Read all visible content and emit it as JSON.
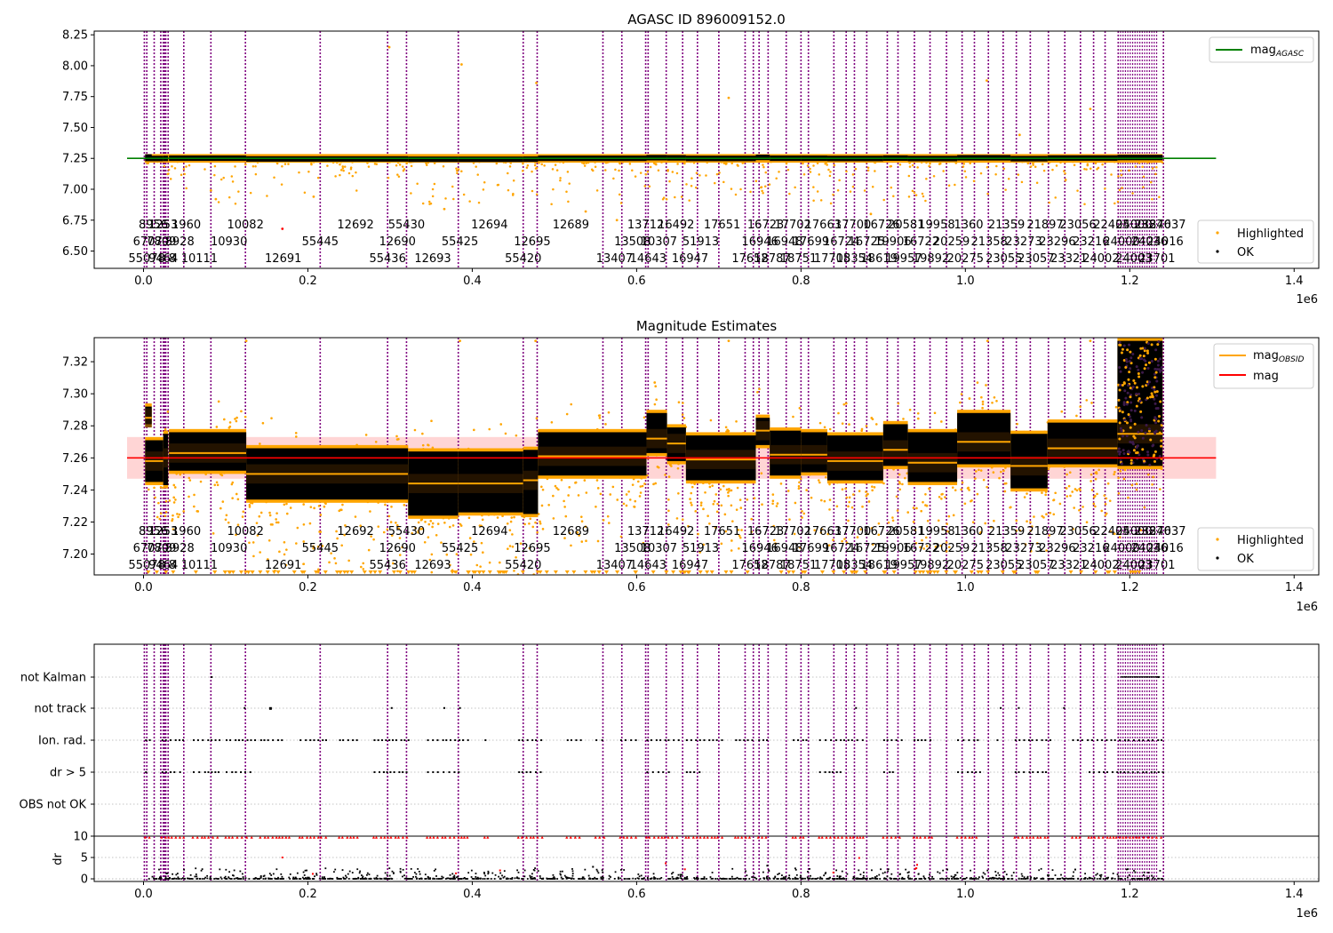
{
  "figure": {
    "panels": [
      "mag_panel",
      "estimates_panel",
      "flags_panel"
    ]
  },
  "chart_data": [
    {
      "id": "mag_panel",
      "type": "scatter",
      "title": "AGASC ID 896009152.0",
      "xlim": [
        -60000,
        1430000
      ],
      "ylim": [
        6.36,
        8.28
      ],
      "x_ticks": [
        0.0,
        0.2,
        0.4,
        0.6,
        0.8,
        1.0,
        1.2,
        1.4
      ],
      "x_multiplier": "1e6",
      "y_ticks": [
        "6.50",
        "6.75",
        "7.00",
        "7.25",
        "7.50",
        "7.75",
        "8.00",
        "8.25"
      ],
      "reference_line": {
        "name": "mag_AGASC",
        "label_main": "mag",
        "label_sub": "AGASC",
        "value": 7.25,
        "color": "#008000"
      },
      "legend_top": {
        "position": "upper right"
      },
      "legend_bottom": {
        "position": "lower right",
        "entries": [
          {
            "label": "Highlighted",
            "color": "#ffa500"
          },
          {
            "label": "OK",
            "color": "#000000"
          }
        ]
      },
      "outliers": [
        {
          "x": 0.299,
          "y": 8.15
        },
        {
          "x": 0.387,
          "y": 8.01
        },
        {
          "x": 0.478,
          "y": 7.86
        },
        {
          "x": 0.712,
          "y": 7.74
        },
        {
          "x": 1.026,
          "y": 7.88
        },
        {
          "x": 1.152,
          "y": 7.65
        },
        {
          "x": 1.066,
          "y": 7.44
        },
        {
          "x": 0.082,
          "y": 6.99
        },
        {
          "x": 0.088,
          "y": 6.92
        },
        {
          "x": 0.207,
          "y": 6.94
        },
        {
          "x": 0.366,
          "y": 6.84
        },
        {
          "x": 0.538,
          "y": 6.82
        },
        {
          "x": 0.576,
          "y": 6.75
        },
        {
          "x": 0.885,
          "y": 6.8
        },
        {
          "x": 0.169,
          "y": 6.68
        }
      ]
    },
    {
      "id": "estimates_panel",
      "type": "scatter",
      "title": "Magnitude Estimates",
      "xlim": [
        -60000,
        1430000
      ],
      "ylim": [
        7.187,
        7.335
      ],
      "x_ticks": [
        0.0,
        0.2,
        0.4,
        0.6,
        0.8,
        1.0,
        1.2,
        1.4
      ],
      "x_multiplier": "1e6",
      "y_ticks": [
        "7.20",
        "7.22",
        "7.24",
        "7.26",
        "7.28",
        "7.30",
        "7.32"
      ],
      "mag_line": {
        "label": "mag",
        "value": 7.26,
        "band": [
          7.247,
          7.273
        ],
        "color": "#ff0000"
      },
      "obsid_label": {
        "label_main": "mag",
        "label_sub": "OBSID",
        "color": "#ffa500"
      },
      "legend_bottom": {
        "position": "lower right",
        "entries": [
          {
            "label": "Highlighted",
            "color": "#ffa500"
          },
          {
            "label": "OK",
            "color": "#000000"
          }
        ]
      },
      "segments": [
        {
          "x0": 0.002,
          "x1": 0.01,
          "mean": 7.285,
          "lo": 7.281,
          "hi": 7.292
        },
        {
          "x0": 0.002,
          "x1": 0.024,
          "mean": 7.258,
          "lo": 7.245,
          "hi": 7.271
        },
        {
          "x0": 0.024,
          "x1": 0.03,
          "mean": 7.26,
          "lo": 7.243,
          "hi": 7.275
        },
        {
          "x0": 0.031,
          "x1": 0.125,
          "mean": 7.263,
          "lo": 7.252,
          "hi": 7.276
        },
        {
          "x0": 0.125,
          "x1": 0.322,
          "mean": 7.25,
          "lo": 7.234,
          "hi": 7.266
        },
        {
          "x0": 0.322,
          "x1": 0.383,
          "mean": 7.244,
          "lo": 7.224,
          "hi": 7.264
        },
        {
          "x0": 0.383,
          "x1": 0.462,
          "mean": 7.244,
          "lo": 7.226,
          "hi": 7.264
        },
        {
          "x0": 0.462,
          "x1": 0.48,
          "mean": 7.246,
          "lo": 7.225,
          "hi": 7.265
        },
        {
          "x0": 0.48,
          "x1": 0.612,
          "mean": 7.261,
          "lo": 7.249,
          "hi": 7.276
        },
        {
          "x0": 0.612,
          "x1": 0.637,
          "mean": 7.272,
          "lo": 7.263,
          "hi": 7.288
        },
        {
          "x0": 0.637,
          "x1": 0.66,
          "mean": 7.269,
          "lo": 7.258,
          "hi": 7.279
        },
        {
          "x0": 0.66,
          "x1": 0.745,
          "mean": 7.259,
          "lo": 7.246,
          "hi": 7.274
        },
        {
          "x0": 0.745,
          "x1": 0.762,
          "mean": 7.277,
          "lo": 7.268,
          "hi": 7.285
        },
        {
          "x0": 0.762,
          "x1": 0.8,
          "mean": 7.262,
          "lo": 7.249,
          "hi": 7.277
        },
        {
          "x0": 0.8,
          "x1": 0.832,
          "mean": 7.262,
          "lo": 7.251,
          "hi": 7.276
        },
        {
          "x0": 0.832,
          "x1": 0.9,
          "mean": 7.258,
          "lo": 7.246,
          "hi": 7.274
        },
        {
          "x0": 0.9,
          "x1": 0.93,
          "mean": 7.265,
          "lo": 7.255,
          "hi": 7.281
        },
        {
          "x0": 0.93,
          "x1": 0.99,
          "mean": 7.257,
          "lo": 7.245,
          "hi": 7.276
        },
        {
          "x0": 0.99,
          "x1": 1.055,
          "mean": 7.27,
          "lo": 7.256,
          "hi": 7.288
        },
        {
          "x0": 1.055,
          "x1": 1.1,
          "mean": 7.255,
          "lo": 7.241,
          "hi": 7.275
        },
        {
          "x0": 1.1,
          "x1": 1.185,
          "mean": 7.266,
          "lo": 7.256,
          "hi": 7.282
        },
        {
          "x0": 1.185,
          "x1": 1.24,
          "mean": 7.275,
          "lo": 7.255,
          "hi": 7.333
        }
      ],
      "outliers": [
        {
          "x": 0.622,
          "y": 7.307
        },
        {
          "x": 0.855,
          "y": 7.294
        },
        {
          "x": 1.005,
          "y": 7.297
        },
        {
          "x": 0.125,
          "y": 7.333
        },
        {
          "x": 0.385,
          "y": 7.333
        },
        {
          "x": 0.477,
          "y": 7.333
        },
        {
          "x": 0.712,
          "y": 7.333
        },
        {
          "x": 1.027,
          "y": 7.333
        },
        {
          "x": 1.152,
          "y": 7.333
        }
      ]
    },
    {
      "id": "flags_panel",
      "type": "scatter",
      "xlim": [
        -60000,
        1430000
      ],
      "x_ticks": [
        0.0,
        0.2,
        0.4,
        0.6,
        0.8,
        1.0,
        1.2,
        1.4
      ],
      "x_multiplier": "1e6",
      "flag_rows": [
        "not Kalman",
        "not track",
        "Ion. rad.",
        "dr > 5",
        "OBS not OK"
      ],
      "dr_axis": {
        "label": "dr",
        "ticks": [
          "0",
          "5",
          "10"
        ],
        "ylim": [
          -0.5,
          10
        ]
      },
      "flag_marks": {
        "not Kalman": [
          0.083,
          1.235
        ],
        "not track": [
          0.123,
          0.154,
          0.302,
          0.366,
          0.385,
          0.867,
          1.043,
          1.065,
          1.12
        ],
        "Ion. rad.": [
          [
            0.002,
            0.008
          ],
          [
            0.022,
            0.048
          ],
          [
            0.06,
            0.092
          ],
          [
            0.1,
            0.135
          ],
          [
            0.142,
            0.17
          ],
          [
            0.19,
            0.222
          ],
          [
            0.238,
            0.262
          ],
          [
            0.28,
            0.322
          ],
          [
            0.345,
            0.395
          ],
          [
            0.415,
            0.42
          ],
          [
            0.456,
            0.488
          ],
          [
            0.515,
            0.532
          ],
          [
            0.55,
            0.562
          ],
          [
            0.58,
            0.6
          ],
          [
            0.612,
            0.652
          ],
          [
            0.66,
            0.706
          ],
          [
            0.72,
            0.742
          ],
          [
            0.748,
            0.76
          ],
          [
            0.79,
            0.806
          ],
          [
            0.822,
            0.876
          ],
          [
            0.9,
            0.922
          ],
          [
            0.937,
            0.962
          ],
          [
            0.99,
            1.017
          ],
          [
            1.038,
            1.044
          ],
          [
            1.06,
            1.103
          ],
          [
            1.13,
            1.142
          ],
          [
            1.148,
            1.24
          ]
        ],
        "dr > 5": [
          [
            0.002,
            0.008
          ],
          [
            0.022,
            0.048
          ],
          [
            0.06,
            0.092
          ],
          [
            0.1,
            0.13
          ],
          [
            0.28,
            0.322
          ],
          [
            0.345,
            0.385
          ],
          [
            0.456,
            0.488
          ],
          [
            0.612,
            0.64
          ],
          [
            0.66,
            0.68
          ],
          [
            0.822,
            0.85
          ],
          [
            0.9,
            0.912
          ],
          [
            0.99,
            1.017
          ],
          [
            1.06,
            1.103
          ],
          [
            1.15,
            1.24
          ]
        ]
      },
      "dr_high_ranges": [
        [
          0.002,
          0.008
        ],
        [
          0.022,
          0.05
        ],
        [
          0.06,
          0.092
        ],
        [
          0.1,
          0.135
        ],
        [
          0.142,
          0.178
        ],
        [
          0.19,
          0.222
        ],
        [
          0.238,
          0.265
        ],
        [
          0.28,
          0.322
        ],
        [
          0.345,
          0.395
        ],
        [
          0.415,
          0.42
        ],
        [
          0.456,
          0.488
        ],
        [
          0.515,
          0.532
        ],
        [
          0.55,
          0.562
        ],
        [
          0.58,
          0.6
        ],
        [
          0.612,
          0.652
        ],
        [
          0.66,
          0.706
        ],
        [
          0.72,
          0.742
        ],
        [
          0.748,
          0.76
        ],
        [
          0.79,
          0.806
        ],
        [
          0.822,
          0.876
        ],
        [
          0.9,
          0.922
        ],
        [
          0.937,
          0.962
        ],
        [
          0.99,
          1.017
        ],
        [
          1.06,
          1.103
        ],
        [
          1.13,
          1.142
        ],
        [
          1.15,
          1.24
        ]
      ]
    }
  ],
  "obsids": {
    "line_x": [
      0.001,
      0.004,
      0.013,
      0.021,
      0.024,
      0.027,
      0.03,
      0.049,
      0.082,
      0.124,
      0.215,
      0.297,
      0.32,
      0.383,
      0.462,
      0.479,
      0.559,
      0.582,
      0.611,
      0.614,
      0.636,
      0.656,
      0.674,
      0.7,
      0.732,
      0.742,
      0.749,
      0.76,
      0.782,
      0.8,
      0.809,
      0.84,
      0.855,
      0.865,
      0.88,
      0.905,
      0.918,
      0.938,
      0.957,
      0.977,
      0.996,
      1.011,
      1.028,
      1.046,
      1.062,
      1.079,
      1.101,
      1.121,
      1.14,
      1.156,
      1.17,
      1.186,
      1.241
    ],
    "dense_band": [
      1.186,
      1.235
    ],
    "labels": [
      {
        "t": "8956",
        "x": 0.012,
        "row": 0
      },
      {
        "t": "1253",
        "x": 0.024,
        "row": 0
      },
      {
        "t": "1960",
        "x": 0.052,
        "row": 0
      },
      {
        "t": "10082",
        "x": 0.124,
        "row": 0
      },
      {
        "t": "12692",
        "x": 0.258,
        "row": 0
      },
      {
        "t": "55430",
        "x": 0.32,
        "row": 0
      },
      {
        "t": "12694",
        "x": 0.421,
        "row": 0
      },
      {
        "t": "12689",
        "x": 0.52,
        "row": 0
      },
      {
        "t": "13712",
        "x": 0.611,
        "row": 0
      },
      {
        "t": "16492",
        "x": 0.648,
        "row": 0
      },
      {
        "t": "17651",
        "x": 0.704,
        "row": 0
      },
      {
        "t": "16723",
        "x": 0.757,
        "row": 0
      },
      {
        "t": "17702",
        "x": 0.79,
        "row": 0
      },
      {
        "t": "17663",
        "x": 0.827,
        "row": 0
      },
      {
        "t": "17700",
        "x": 0.863,
        "row": 0
      },
      {
        "t": "16726",
        "x": 0.898,
        "row": 0
      },
      {
        "t": "20581",
        "x": 0.928,
        "row": 0
      },
      {
        "t": "19958",
        "x": 0.965,
        "row": 0
      },
      {
        "t": "1360",
        "x": 1.004,
        "row": 0
      },
      {
        "t": "21359",
        "x": 1.05,
        "row": 0
      },
      {
        "t": "21897",
        "x": 1.097,
        "row": 0
      },
      {
        "t": "23056",
        "x": 1.137,
        "row": 0
      },
      {
        "t": "22405",
        "x": 1.178,
        "row": 0
      },
      {
        "t": "24000",
        "x": 1.205,
        "row": 0
      },
      {
        "t": "23876",
        "x": 1.228,
        "row": 0
      },
      {
        "t": "24037",
        "x": 1.246,
        "row": 0
      },
      {
        "t": "6707",
        "x": 0.005,
        "row": 1
      },
      {
        "t": "7809",
        "x": 0.022,
        "row": 1
      },
      {
        "t": "8928",
        "x": 0.044,
        "row": 1
      },
      {
        "t": "10930",
        "x": 0.104,
        "row": 1
      },
      {
        "t": "55445",
        "x": 0.215,
        "row": 1
      },
      {
        "t": "12690",
        "x": 0.309,
        "row": 1
      },
      {
        "t": "55425",
        "x": 0.385,
        "row": 1
      },
      {
        "t": "12695",
        "x": 0.473,
        "row": 1
      },
      {
        "t": "13508",
        "x": 0.595,
        "row": 1
      },
      {
        "t": "10307",
        "x": 0.627,
        "row": 1
      },
      {
        "t": "51913",
        "x": 0.678,
        "row": 1
      },
      {
        "t": "16946",
        "x": 0.75,
        "row": 1
      },
      {
        "t": "16948",
        "x": 0.78,
        "row": 1
      },
      {
        "t": "17699",
        "x": 0.812,
        "row": 1
      },
      {
        "t": "16724",
        "x": 0.849,
        "row": 1
      },
      {
        "t": "16725",
        "x": 0.88,
        "row": 1
      },
      {
        "t": "19906",
        "x": 0.912,
        "row": 1
      },
      {
        "t": "16722",
        "x": 0.946,
        "row": 1
      },
      {
        "t": "20259",
        "x": 0.983,
        "row": 1
      },
      {
        "t": "21358",
        "x": 1.029,
        "row": 1
      },
      {
        "t": "23273",
        "x": 1.071,
        "row": 1
      },
      {
        "t": "23296",
        "x": 1.112,
        "row": 1
      },
      {
        "t": "23216",
        "x": 1.153,
        "row": 1
      },
      {
        "t": "24000",
        "x": 1.19,
        "row": 1
      },
      {
        "t": "24036",
        "x": 1.224,
        "row": 1
      },
      {
        "t": "24016",
        "x": 1.243,
        "row": 1
      },
      {
        "t": "55078",
        "x": 0.004,
        "row": 2
      },
      {
        "t": "9464",
        "x": 0.024,
        "row": 2
      },
      {
        "t": "8",
        "x": 0.035,
        "row": 2
      },
      {
        "t": "10111",
        "x": 0.068,
        "row": 2
      },
      {
        "t": "12691",
        "x": 0.17,
        "row": 2
      },
      {
        "t": "55436",
        "x": 0.297,
        "row": 2
      },
      {
        "t": "12693",
        "x": 0.352,
        "row": 2
      },
      {
        "t": "55420",
        "x": 0.462,
        "row": 2
      },
      {
        "t": "13407",
        "x": 0.573,
        "row": 2
      },
      {
        "t": "14643",
        "x": 0.614,
        "row": 2
      },
      {
        "t": "16947",
        "x": 0.665,
        "row": 2
      },
      {
        "t": "17652",
        "x": 0.738,
        "row": 2
      },
      {
        "t": "18787",
        "x": 0.765,
        "row": 2
      },
      {
        "t": "18751",
        "x": 0.797,
        "row": 2
      },
      {
        "t": "17705",
        "x": 0.838,
        "row": 2
      },
      {
        "t": "18354",
        "x": 0.865,
        "row": 2
      },
      {
        "t": "18619",
        "x": 0.895,
        "row": 2
      },
      {
        "t": "19957",
        "x": 0.925,
        "row": 2
      },
      {
        "t": "19892",
        "x": 0.958,
        "row": 2
      },
      {
        "t": "20275",
        "x": 1.0,
        "row": 2
      },
      {
        "t": "23055",
        "x": 1.047,
        "row": 2
      },
      {
        "t": "23057",
        "x": 1.086,
        "row": 2
      },
      {
        "t": "23321",
        "x": 1.126,
        "row": 2
      },
      {
        "t": "24002",
        "x": 1.165,
        "row": 2
      },
      {
        "t": "24003",
        "x": 1.205,
        "row": 2
      },
      {
        "t": "23701",
        "x": 1.233,
        "row": 2
      }
    ]
  },
  "colors": {
    "obsid_line": "#800080",
    "highlighted": "#ffa500",
    "ok": "#000000",
    "agasc_line": "#008000",
    "mag_line": "#ff0000",
    "mag_band": "#ffb3b3",
    "dr_high": "#ff0000",
    "grid": "#b0b0b0"
  }
}
